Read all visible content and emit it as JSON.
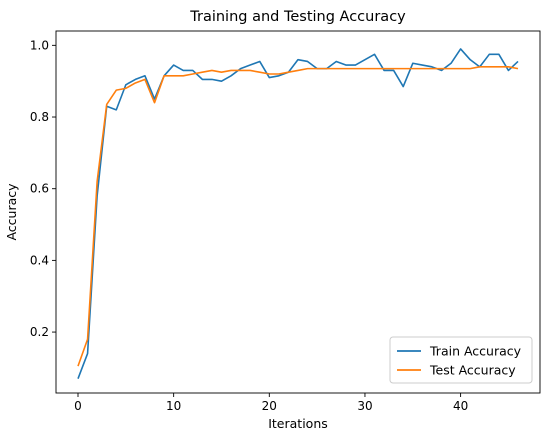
{
  "chart_data": {
    "type": "line",
    "title": "Training and Testing Accuracy",
    "xlabel": "Iterations",
    "ylabel": "Accuracy",
    "xlim": [
      -2.3,
      48.3
    ],
    "ylim": [
      0.03,
      1.04
    ],
    "xticks": [
      0,
      10,
      20,
      30,
      40
    ],
    "yticks": [
      0.2,
      0.4,
      0.6,
      0.8,
      1.0
    ],
    "ytick_labels": [
      "0.2",
      "0.4",
      "0.6",
      "0.8",
      "1.0"
    ],
    "grid": false,
    "legend_position": "lower right",
    "x": [
      0,
      1,
      2,
      3,
      4,
      5,
      6,
      7,
      8,
      9,
      10,
      11,
      12,
      13,
      14,
      15,
      16,
      17,
      18,
      19,
      20,
      21,
      22,
      23,
      24,
      25,
      26,
      27,
      28,
      29,
      30,
      31,
      32,
      33,
      34,
      35,
      36,
      37,
      38,
      39,
      40,
      41,
      42,
      43,
      44,
      45,
      46
    ],
    "series": [
      {
        "name": "Train Accuracy",
        "color": "#1f77b4",
        "values": [
          0.07,
          0.14,
          0.58,
          0.83,
          0.82,
          0.89,
          0.905,
          0.915,
          0.85,
          0.915,
          0.945,
          0.93,
          0.93,
          0.905,
          0.905,
          0.9,
          0.915,
          0.935,
          0.945,
          0.955,
          0.91,
          0.915,
          0.925,
          0.96,
          0.955,
          0.935,
          0.935,
          0.955,
          0.945,
          0.945,
          0.96,
          0.975,
          0.93,
          0.93,
          0.885,
          0.95,
          0.945,
          0.94,
          0.93,
          0.95,
          0.99,
          0.96,
          0.94,
          0.975,
          0.975,
          0.93,
          0.955
        ]
      },
      {
        "name": "Test Accuracy",
        "color": "#ff7f0e",
        "values": [
          0.105,
          0.18,
          0.62,
          0.835,
          0.875,
          0.88,
          0.895,
          0.905,
          0.84,
          0.915,
          0.915,
          0.915,
          0.92,
          0.925,
          0.93,
          0.925,
          0.93,
          0.93,
          0.93,
          0.925,
          0.92,
          0.92,
          0.925,
          0.93,
          0.935,
          0.935,
          0.935,
          0.935,
          0.935,
          0.935,
          0.935,
          0.935,
          0.935,
          0.935,
          0.935,
          0.935,
          0.935,
          0.935,
          0.935,
          0.935,
          0.935,
          0.935,
          0.94,
          0.94,
          0.94,
          0.94,
          0.935
        ]
      }
    ]
  }
}
